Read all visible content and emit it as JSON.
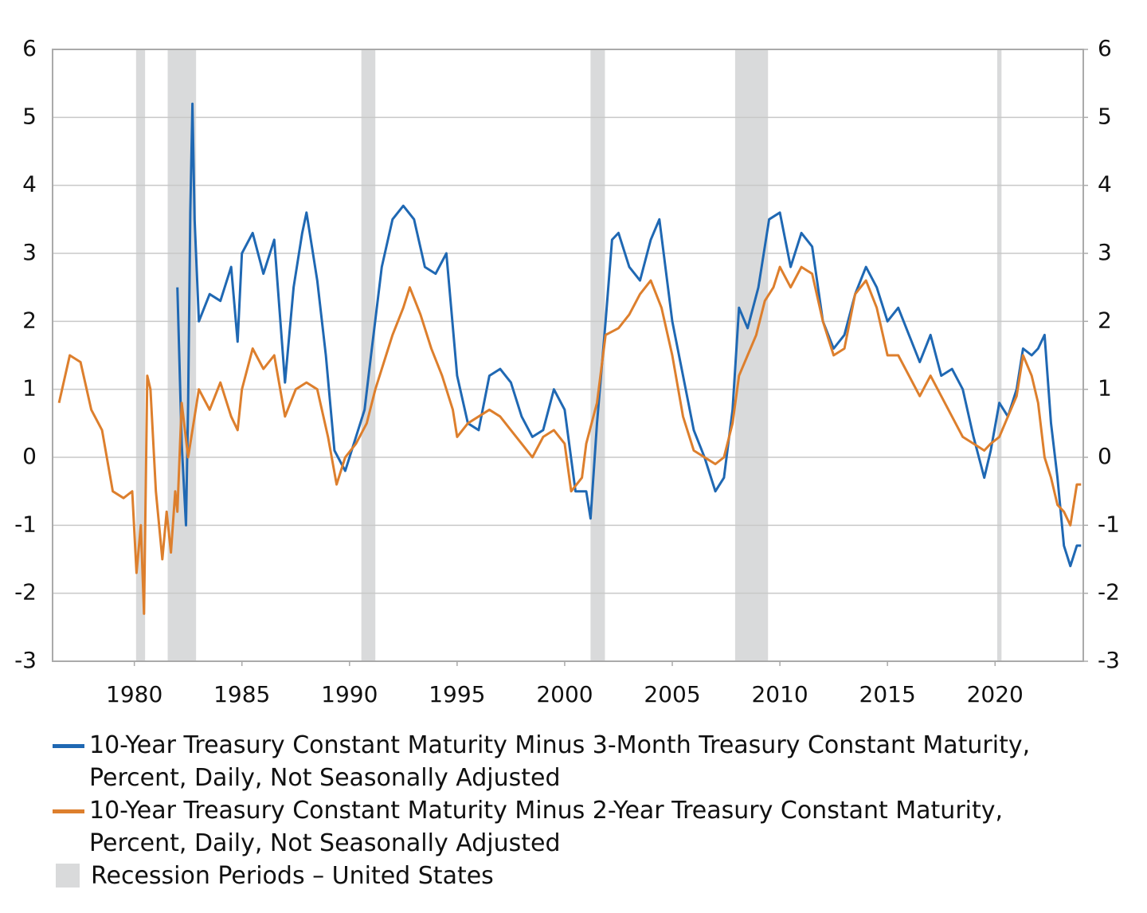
{
  "chart_data": {
    "type": "line",
    "xlim": [
      1976.2,
      2024.1
    ],
    "xticks": [
      1980,
      1985,
      1990,
      1995,
      2000,
      2005,
      2010,
      2015,
      2020
    ],
    "ylim": [
      -3,
      6
    ],
    "yticks": [
      -3,
      -2,
      -1,
      0,
      1,
      2,
      3,
      4,
      5,
      6
    ],
    "y2lim": [
      -3,
      6
    ],
    "y2ticks": [
      -3,
      -2,
      -1,
      0,
      1,
      2,
      3,
      4,
      5,
      6
    ],
    "grid": true,
    "recession_label": "Recession Periods – United States",
    "recession_color": "#d9dadb",
    "recessions": [
      [
        1980.08,
        1980.5
      ],
      [
        1981.55,
        1982.87
      ],
      [
        1990.55,
        1991.2
      ],
      [
        2001.2,
        2001.87
      ],
      [
        2007.92,
        2009.45
      ],
      [
        2020.1,
        2020.3
      ]
    ],
    "series": [
      {
        "name": "10-Year Treasury Constant Maturity Minus 3-Month Treasury Constant Maturity, Percent, Daily, Not Seasonally Adjusted",
        "color": "#1f68b3",
        "x": [
          1982.0,
          1982.2,
          1982.4,
          1982.5,
          1982.6,
          1982.7,
          1982.8,
          1983.0,
          1983.5,
          1984.0,
          1984.5,
          1984.8,
          1985.0,
          1985.5,
          1986.0,
          1986.5,
          1987.0,
          1987.4,
          1987.8,
          1988.0,
          1988.5,
          1988.9,
          1989.3,
          1989.8,
          1990.2,
          1990.7,
          1991.0,
          1991.5,
          1992.0,
          1992.5,
          1993.0,
          1993.5,
          1994.0,
          1994.5,
          1995.0,
          1995.5,
          1996.0,
          1996.5,
          1997.0,
          1997.5,
          1998.0,
          1998.5,
          1999.0,
          1999.5,
          2000.0,
          2000.5,
          2001.0,
          2001.2,
          2001.5,
          2001.9,
          2002.2,
          2002.5,
          2003.0,
          2003.5,
          2004.0,
          2004.4,
          2005.0,
          2005.5,
          2006.0,
          2006.5,
          2007.0,
          2007.4,
          2007.8,
          2008.1,
          2008.5,
          2009.0,
          2009.5,
          2010.0,
          2010.5,
          2011.0,
          2011.5,
          2012.0,
          2012.5,
          2013.0,
          2013.5,
          2014.0,
          2014.5,
          2015.0,
          2015.5,
          2016.0,
          2016.5,
          2017.0,
          2017.5,
          2018.0,
          2018.5,
          2019.0,
          2019.5,
          2019.8,
          2020.2,
          2020.6,
          2021.0,
          2021.3,
          2021.7,
          2022.0,
          2022.3,
          2022.6,
          2022.9,
          2023.2,
          2023.5,
          2023.8,
          2024.0
        ],
        "values": [
          2.5,
          0.2,
          -1.0,
          0.8,
          3.6,
          5.2,
          3.5,
          2.0,
          2.4,
          2.3,
          2.8,
          1.7,
          3.0,
          3.3,
          2.7,
          3.2,
          1.1,
          2.5,
          3.3,
          3.6,
          2.6,
          1.5,
          0.1,
          -0.2,
          0.2,
          0.7,
          1.5,
          2.8,
          3.5,
          3.7,
          3.5,
          2.8,
          2.7,
          3.0,
          1.2,
          0.5,
          0.4,
          1.2,
          1.3,
          1.1,
          0.6,
          0.3,
          0.4,
          1.0,
          0.7,
          -0.5,
          -0.5,
          -0.9,
          0.5,
          2.0,
          3.2,
          3.3,
          2.8,
          2.6,
          3.2,
          3.5,
          2.0,
          1.2,
          0.4,
          0.0,
          -0.5,
          -0.3,
          0.7,
          2.2,
          1.9,
          2.5,
          3.5,
          3.6,
          2.8,
          3.3,
          3.1,
          2.0,
          1.6,
          1.8,
          2.4,
          2.8,
          2.5,
          2.0,
          2.2,
          1.8,
          1.4,
          1.8,
          1.2,
          1.3,
          1.0,
          0.3,
          -0.3,
          0.1,
          0.8,
          0.6,
          1.0,
          1.6,
          1.5,
          1.6,
          1.8,
          0.5,
          -0.3,
          -1.3,
          -1.6,
          -1.3,
          -1.3
        ]
      },
      {
        "name": "10-Year Treasury Constant Maturity Minus 2-Year Treasury Constant Maturity, Percent, Daily, Not Seasonally Adjusted",
        "color": "#dd7f2d",
        "x": [
          1976.5,
          1977.0,
          1977.5,
          1978.0,
          1978.5,
          1979.0,
          1979.5,
          1979.9,
          1980.1,
          1980.3,
          1980.45,
          1980.6,
          1980.75,
          1981.0,
          1981.3,
          1981.5,
          1981.7,
          1981.9,
          1982.0,
          1982.2,
          1982.5,
          1982.8,
          1983.0,
          1983.5,
          1984.0,
          1984.5,
          1984.8,
          1985.0,
          1985.5,
          1986.0,
          1986.5,
          1987.0,
          1987.5,
          1988.0,
          1988.5,
          1989.0,
          1989.4,
          1989.8,
          1990.3,
          1990.8,
          1991.2,
          1991.7,
          1992.0,
          1992.5,
          1992.8,
          1993.3,
          1993.8,
          1994.3,
          1994.8,
          1995.0,
          1995.5,
          1996.0,
          1996.5,
          1997.0,
          1997.5,
          1998.0,
          1998.5,
          1999.0,
          1999.5,
          2000.0,
          2000.3,
          2000.8,
          2001.0,
          2001.5,
          2001.9,
          2002.5,
          2003.0,
          2003.5,
          2004.0,
          2004.5,
          2005.0,
          2005.5,
          2006.0,
          2006.5,
          2007.0,
          2007.4,
          2007.8,
          2008.1,
          2008.5,
          2008.9,
          2009.3,
          2009.7,
          2010.0,
          2010.5,
          2011.0,
          2011.5,
          2012.0,
          2012.5,
          2013.0,
          2013.5,
          2014.0,
          2014.5,
          2015.0,
          2015.5,
          2016.0,
          2016.5,
          2017.0,
          2017.5,
          2018.0,
          2018.5,
          2019.0,
          2019.5,
          2019.8,
          2020.2,
          2020.6,
          2021.0,
          2021.3,
          2021.7,
          2022.0,
          2022.3,
          2022.6,
          2022.9,
          2023.2,
          2023.5,
          2023.8,
          2024.0
        ],
        "values": [
          0.8,
          1.5,
          1.4,
          0.7,
          0.4,
          -0.5,
          -0.6,
          -0.5,
          -1.7,
          -1.0,
          -2.3,
          1.2,
          1.0,
          -0.5,
          -1.5,
          -0.8,
          -1.4,
          -0.5,
          -0.8,
          0.8,
          0.0,
          0.6,
          1.0,
          0.7,
          1.1,
          0.6,
          0.4,
          1.0,
          1.6,
          1.3,
          1.5,
          0.6,
          1.0,
          1.1,
          1.0,
          0.3,
          -0.4,
          0.0,
          0.2,
          0.5,
          1.0,
          1.5,
          1.8,
          2.2,
          2.5,
          2.1,
          1.6,
          1.2,
          0.7,
          0.3,
          0.5,
          0.6,
          0.7,
          0.6,
          0.4,
          0.2,
          0.0,
          0.3,
          0.4,
          0.2,
          -0.5,
          -0.3,
          0.2,
          0.8,
          1.8,
          1.9,
          2.1,
          2.4,
          2.6,
          2.2,
          1.5,
          0.6,
          0.1,
          0.0,
          -0.1,
          0.0,
          0.5,
          1.2,
          1.5,
          1.8,
          2.3,
          2.5,
          2.8,
          2.5,
          2.8,
          2.7,
          2.0,
          1.5,
          1.6,
          2.4,
          2.6,
          2.2,
          1.5,
          1.5,
          1.2,
          0.9,
          1.2,
          0.9,
          0.6,
          0.3,
          0.2,
          0.1,
          0.2,
          0.3,
          0.6,
          0.9,
          1.5,
          1.2,
          0.8,
          0.0,
          -0.3,
          -0.7,
          -0.8,
          -1.0,
          -0.4,
          -0.4
        ]
      }
    ]
  }
}
